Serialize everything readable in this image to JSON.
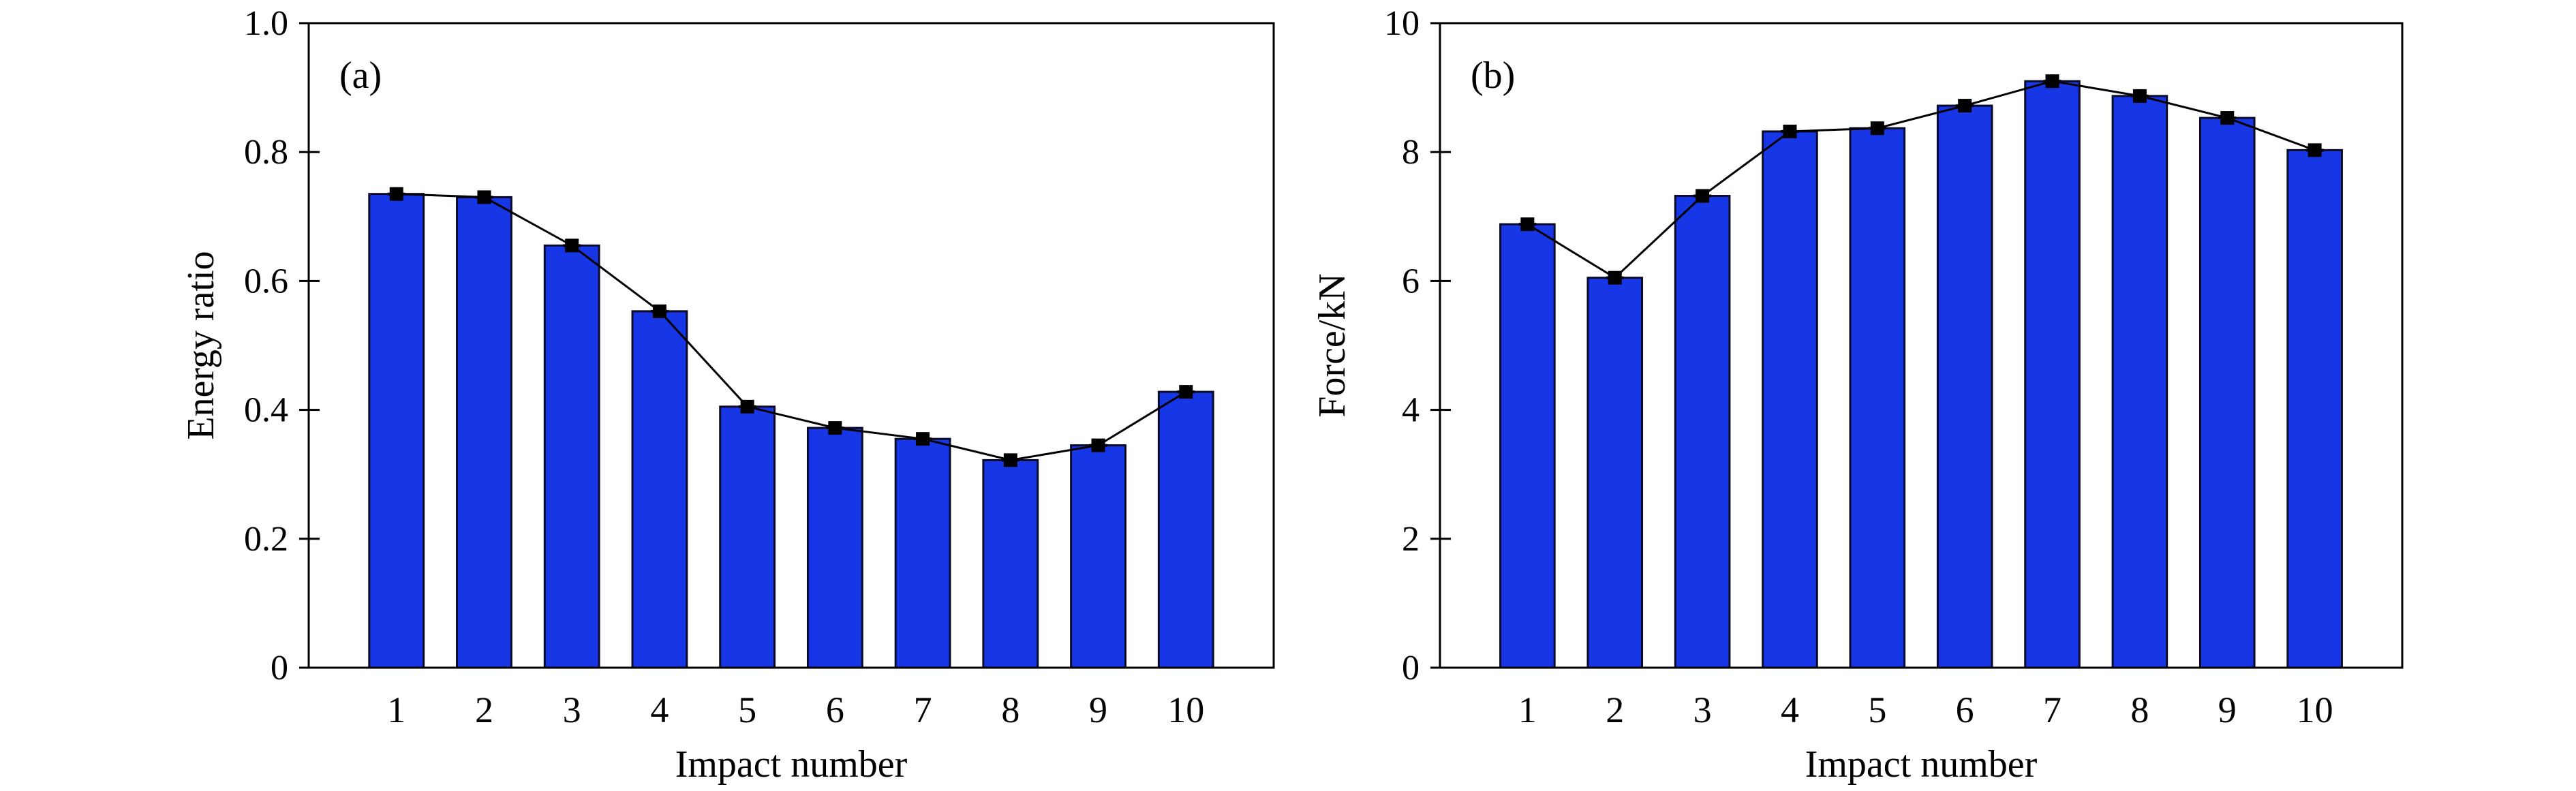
{
  "colors": {
    "bar_fill": "#1737e6",
    "bar_edge": "#0a0a2a",
    "line": "#000000",
    "marker": "#000000"
  },
  "chart_data": [
    {
      "id": "a",
      "type": "bar",
      "panel_label": "(a)",
      "title": "",
      "xlabel": "Impact number",
      "ylabel": "Energy ratio",
      "ylim": [
        0,
        1.0
      ],
      "yticks": [
        "0",
        "0.2",
        "0.4",
        "0.6",
        "0.8",
        "1.0"
      ],
      "ytick_values": [
        0,
        0.2,
        0.4,
        0.6,
        0.8,
        1.0
      ],
      "categories": [
        "1",
        "2",
        "3",
        "4",
        "5",
        "6",
        "7",
        "8",
        "9",
        "10"
      ],
      "values": [
        0.735,
        0.73,
        0.655,
        0.553,
        0.405,
        0.372,
        0.355,
        0.322,
        0.345,
        0.428
      ],
      "overlay_line": true,
      "grid": false,
      "legend": "none"
    },
    {
      "id": "b",
      "type": "bar",
      "panel_label": "(b)",
      "title": "",
      "xlabel": "Impact number",
      "ylabel": "Force/kN",
      "ylim": [
        0,
        10
      ],
      "yticks": [
        "0",
        "2",
        "4",
        "6",
        "8",
        "10"
      ],
      "ytick_values": [
        0,
        2,
        4,
        6,
        8,
        10
      ],
      "categories": [
        "1",
        "2",
        "3",
        "4",
        "5",
        "6",
        "7",
        "8",
        "9",
        "10"
      ],
      "values": [
        6.88,
        6.05,
        7.32,
        8.32,
        8.37,
        8.72,
        9.1,
        8.87,
        8.53,
        8.03
      ],
      "overlay_line": true,
      "grid": false,
      "legend": "none"
    }
  ]
}
